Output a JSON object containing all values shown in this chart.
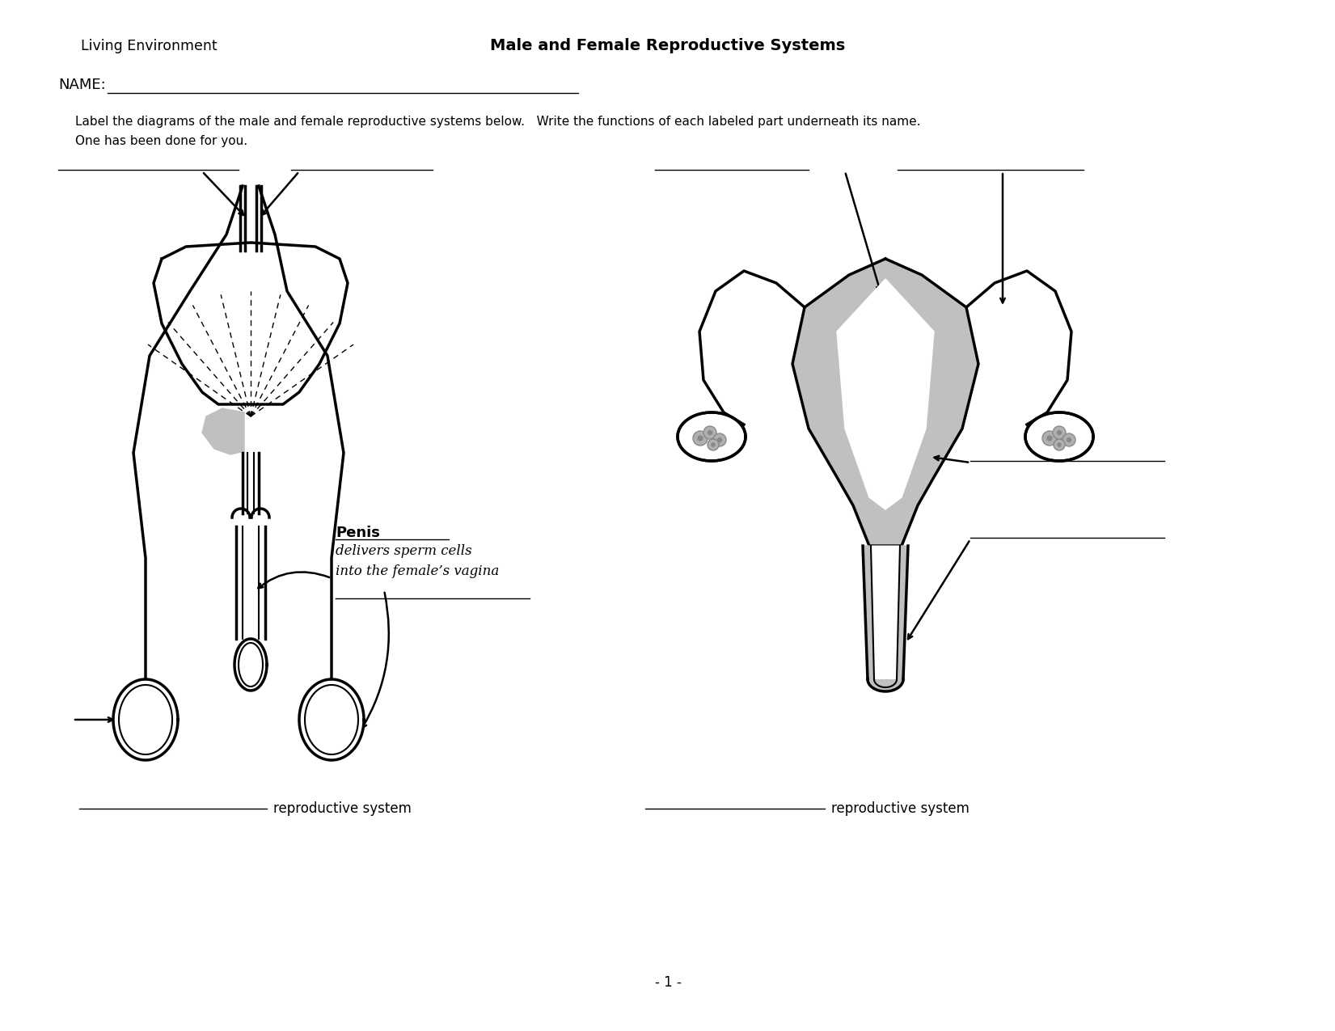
{
  "title": "Male and Female Reproductive Systems",
  "subtitle": "Living Environment",
  "name_label": "NAME:",
  "instructions_line1": "Label the diagrams of the male and female reproductive systems below.   Write the functions of each labeled part underneath its name.",
  "instructions_line2": "One has been done for you.",
  "penis_label": "Penis",
  "penis_func1": "delivers sperm cells",
  "penis_func2": "into the female’s vagina",
  "repro_system_label": "reproductive system",
  "page_number": "- 1 -",
  "bg_color": "#ffffff",
  "lc": "#000000",
  "gc": "#c0c0c0"
}
